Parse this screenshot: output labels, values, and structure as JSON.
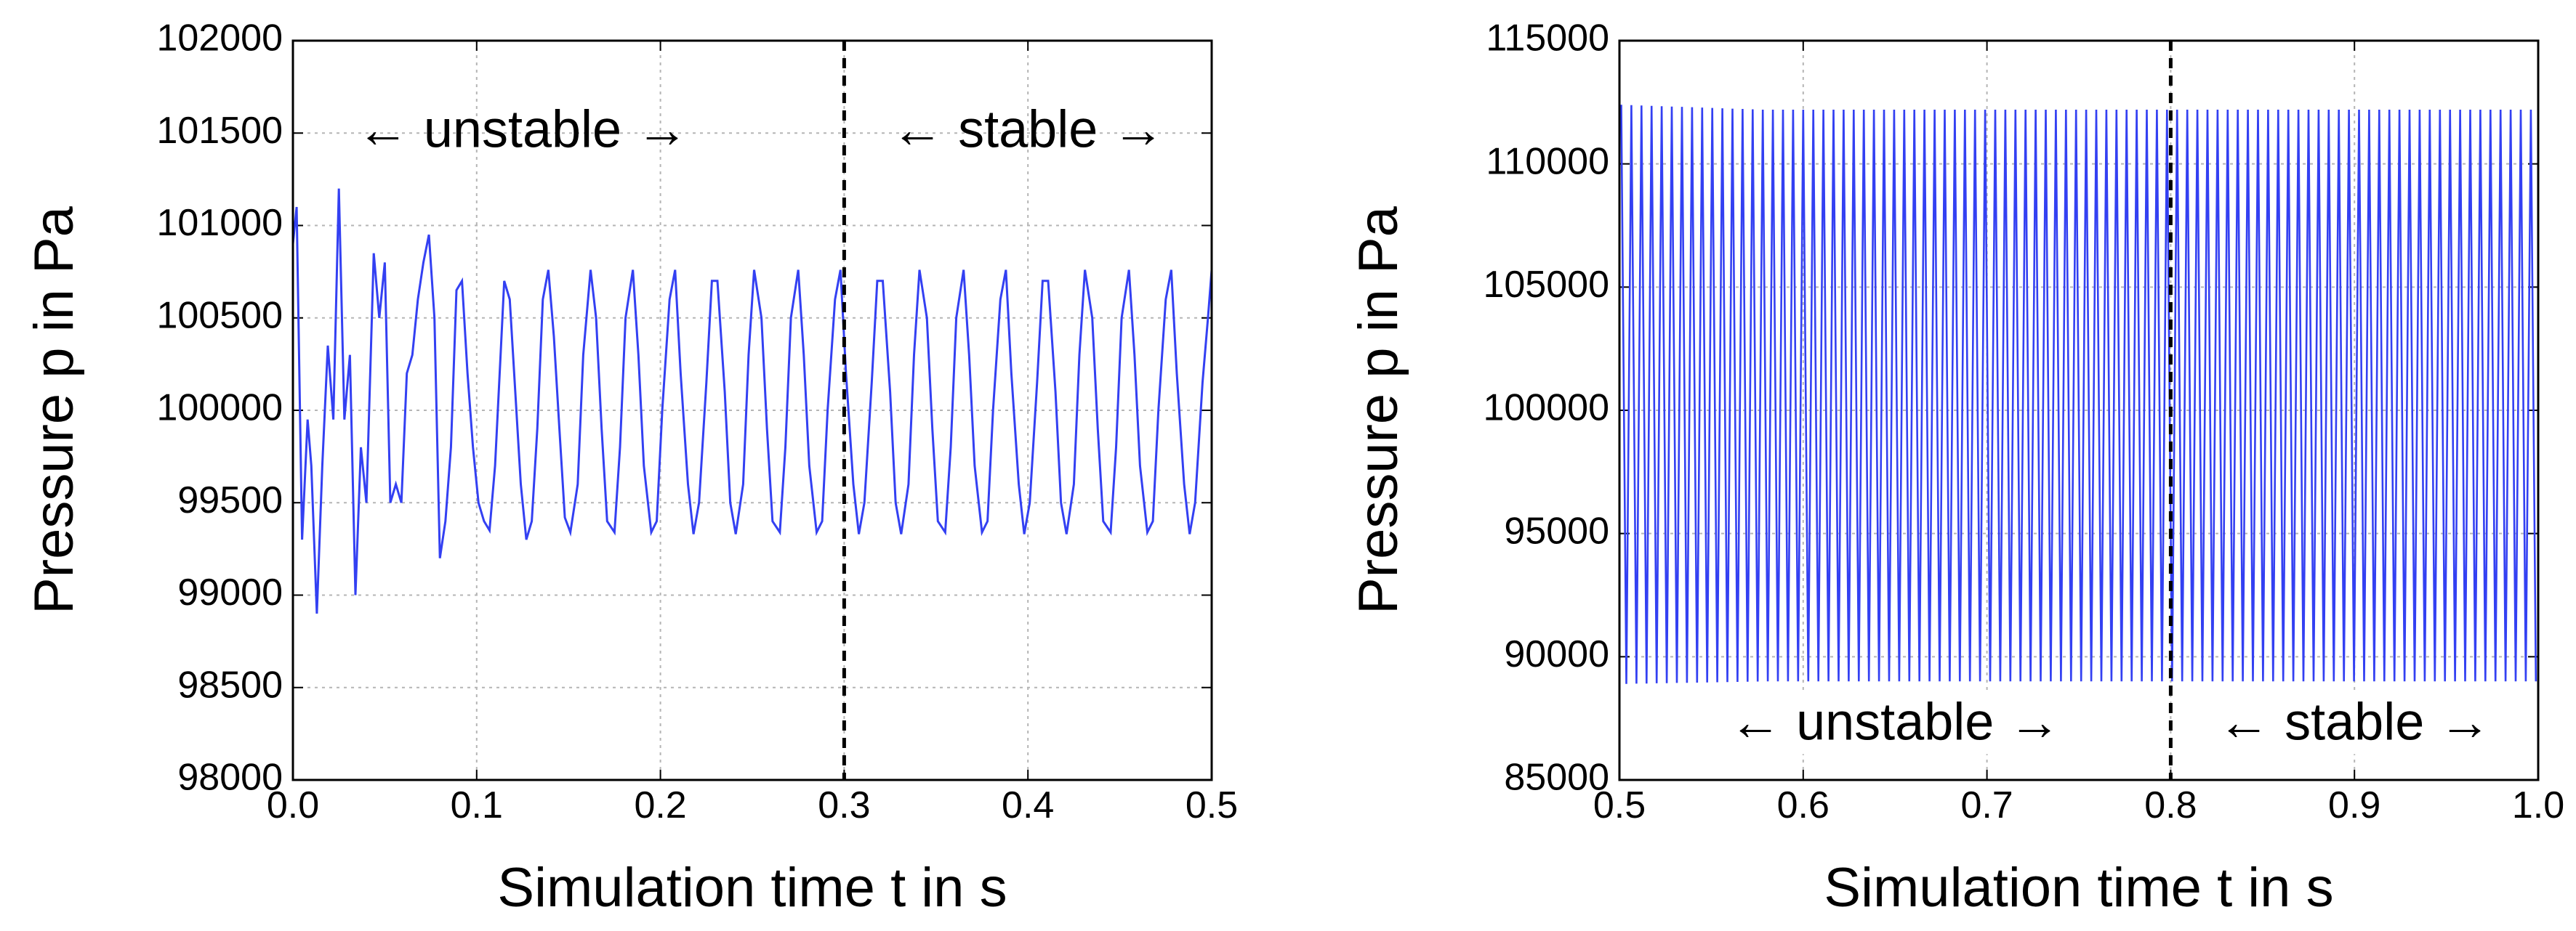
{
  "chart_data": [
    {
      "type": "line",
      "title": "",
      "xlabel": "Simulation time t in s",
      "ylabel": "Pressure p in Pa",
      "xlim": [
        0.0,
        0.5
      ],
      "ylim": [
        98000,
        102000
      ],
      "xticks": [
        "0.0",
        "0.1",
        "0.2",
        "0.3",
        "0.4",
        "0.5"
      ],
      "yticks": [
        "98000",
        "98500",
        "99000",
        "99500",
        "100000",
        "100500",
        "101000",
        "101500",
        "102000"
      ],
      "grid": true,
      "line_color": "#3340f2",
      "divider_x": 0.3,
      "annotations": [
        {
          "text": "← unstable →",
          "x": 0.125,
          "y": 101500
        },
        {
          "text": "← stable →",
          "x": 0.4,
          "y": 101500
        }
      ],
      "series": [
        {
          "x": [
            0.0,
            0.002,
            0.005,
            0.008,
            0.01,
            0.013,
            0.016,
            0.019,
            0.022,
            0.025,
            0.028,
            0.031,
            0.034,
            0.037,
            0.04,
            0.044,
            0.047,
            0.05,
            0.053,
            0.056,
            0.059,
            0.062,
            0.065,
            0.068,
            0.071,
            0.074,
            0.077,
            0.08,
            0.083,
            0.086,
            0.089,
            0.092,
            0.095,
            0.098,
            0.101,
            0.104,
            0.107,
            0.11,
            0.113,
            0.115,
            0.118,
            0.121,
            0.124,
            0.127,
            0.13,
            0.133,
            0.136,
            0.139,
            0.142,
            0.145,
            0.148,
            0.151,
            0.155,
            0.158,
            0.162,
            0.165,
            0.168,
            0.171,
            0.175,
            0.178,
            0.181,
            0.185,
            0.188,
            0.191,
            0.195,
            0.198,
            0.201,
            0.205,
            0.208,
            0.211,
            0.215,
            0.218,
            0.221,
            0.225,
            0.228,
            0.231,
            0.235,
            0.238,
            0.241,
            0.245,
            0.248,
            0.251,
            0.255,
            0.258,
            0.261,
            0.265,
            0.268,
            0.271,
            0.275,
            0.278,
            0.281,
            0.285,
            0.288,
            0.291,
            0.295,
            0.298,
            0.301,
            0.305,
            0.308,
            0.311,
            0.315,
            0.318,
            0.321,
            0.325,
            0.328,
            0.331,
            0.335,
            0.338,
            0.341,
            0.345,
            0.348,
            0.351,
            0.355,
            0.358,
            0.361,
            0.365,
            0.368,
            0.371,
            0.375,
            0.378,
            0.381,
            0.385,
            0.388,
            0.391,
            0.395,
            0.398,
            0.401,
            0.405,
            0.408,
            0.411,
            0.415,
            0.418,
            0.421,
            0.425,
            0.428,
            0.431,
            0.435,
            0.438,
            0.441,
            0.445,
            0.448,
            0.451,
            0.455,
            0.458,
            0.461,
            0.465,
            0.468,
            0.471,
            0.475,
            0.478,
            0.481,
            0.485,
            0.488,
            0.491,
            0.495,
            0.498,
            0.5
          ],
          "y": [
            100900,
            101100,
            99300,
            99950,
            99700,
            98900,
            99700,
            100350,
            99950,
            101200,
            99950,
            100300,
            99000,
            99800,
            99500,
            100850,
            100500,
            100800,
            99500,
            99600,
            99500,
            100200,
            100300,
            100600,
            100800,
            100950,
            100500,
            99200,
            99400,
            99800,
            100650,
            100700,
            100200,
            99800,
            99500,
            99400,
            99350,
            99700,
            100300,
            100700,
            100600,
            100100,
            99600,
            99300,
            99400,
            99900,
            100600,
            100760,
            100400,
            99900,
            99420,
            99340,
            99600,
            100300,
            100760,
            100500,
            99900,
            99400,
            99340,
            99800,
            100500,
            100760,
            100300,
            99700,
            99340,
            99400,
            100000,
            100600,
            100760,
            100200,
            99600,
            99330,
            99500,
            100150,
            100700,
            100700,
            100100,
            99500,
            99330,
            99600,
            100300,
            100760,
            100500,
            99900,
            99400,
            99340,
            99800,
            100500,
            100760,
            100300,
            99700,
            99340,
            99400,
            100000,
            100600,
            100760,
            100200,
            99600,
            99330,
            99500,
            100150,
            100700,
            100700,
            100100,
            99500,
            99330,
            99600,
            100300,
            100760,
            100500,
            99900,
            99400,
            99340,
            99800,
            100500,
            100760,
            100300,
            99700,
            99340,
            99400,
            100000,
            100600,
            100760,
            100200,
            99600,
            99330,
            99500,
            100150,
            100700,
            100700,
            100100,
            99500,
            99330,
            99600,
            100300,
            100760,
            100500,
            99900,
            99400,
            99340,
            99800,
            100500,
            100760,
            100300,
            99700,
            99340,
            99400,
            100000,
            100600,
            100760,
            100200,
            99600,
            99330,
            99500,
            100150,
            100500,
            100760
          ]
        }
      ]
    },
    {
      "type": "line",
      "title": "",
      "xlabel": "Simulation time t in s",
      "ylabel": "Pressure p in Pa",
      "xlim": [
        0.5,
        1.0
      ],
      "ylim": [
        85000,
        115000
      ],
      "xticks": [
        "0.5",
        "0.6",
        "0.7",
        "0.8",
        "0.9",
        "1.0"
      ],
      "yticks": [
        "85000",
        "90000",
        "95000",
        "100000",
        "105000",
        "110000",
        "115000"
      ],
      "grid": true,
      "line_color": "#3340f2",
      "divider_x": 0.8,
      "annotations": [
        {
          "text": "← unstable →",
          "x": 0.65,
          "y": 87200
        },
        {
          "text": "← stable →",
          "x": 0.9,
          "y": 87200
        }
      ],
      "series": [
        {
          "oscillation": {
            "t_start": 0.501,
            "t_end": 1.0,
            "period": 0.0055,
            "max": 112200,
            "min": 89000,
            "max_start": 112400,
            "min_start": 88900
          }
        }
      ]
    }
  ]
}
